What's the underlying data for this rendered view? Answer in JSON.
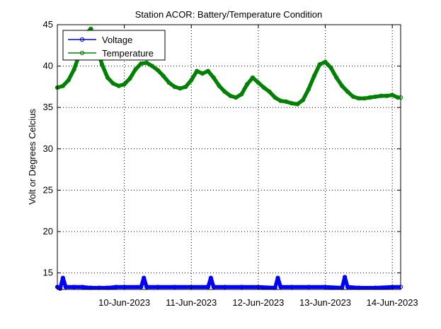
{
  "chart_data": {
    "type": "line",
    "title": "Station ACOR: Battery/Temperature Condition",
    "xlabel": "",
    "ylabel": "Volt or Degrees Celcius",
    "xlim": [
      "2023-06-09 00:00",
      "2023-06-14 03:00"
    ],
    "ylim": [
      13,
      45
    ],
    "yticks": [
      15,
      20,
      25,
      30,
      35,
      40,
      45
    ],
    "xticks": [
      {
        "label": "10-Jun-2023",
        "value": "2023-06-10 00:00"
      },
      {
        "label": "11-Jun-2023",
        "value": "2023-06-11 00:00"
      },
      {
        "label": "12-Jun-2023",
        "value": "2023-06-12 00:00"
      },
      {
        "label": "13-Jun-2023",
        "value": "2023-06-13 00:00"
      },
      {
        "label": "14-Jun-2023",
        "value": "2023-06-14 00:00"
      }
    ],
    "grid": true,
    "legend_position": "top-left",
    "series": [
      {
        "name": "Voltage",
        "color": "#0000ff",
        "marker": "circle",
        "x": [
          "2023-06-09 00:00",
          "2023-06-09 01:00",
          "2023-06-09 02:00",
          "2023-06-09 03:00",
          "2023-06-09 06:00",
          "2023-06-09 09:00",
          "2023-06-09 12:00",
          "2023-06-09 15:00",
          "2023-06-09 18:00",
          "2023-06-09 21:00",
          "2023-06-10 00:00",
          "2023-06-10 06:00",
          "2023-06-10 07:00",
          "2023-06-10 08:00",
          "2023-06-10 12:00",
          "2023-06-10 18:00",
          "2023-06-11 00:00",
          "2023-06-11 06:00",
          "2023-06-11 07:00",
          "2023-06-11 08:00",
          "2023-06-11 12:00",
          "2023-06-11 18:00",
          "2023-06-12 00:00",
          "2023-06-12 06:00",
          "2023-06-12 07:00",
          "2023-06-12 08:00",
          "2023-06-12 12:00",
          "2023-06-12 18:00",
          "2023-06-13 00:00",
          "2023-06-13 06:00",
          "2023-06-13 07:00",
          "2023-06-13 08:00",
          "2023-06-13 12:00",
          "2023-06-13 18:00",
          "2023-06-14 00:00",
          "2023-06-14 03:00"
        ],
        "values": [
          13.3,
          13.1,
          14.4,
          13.3,
          13.3,
          13.3,
          13.2,
          13.2,
          13.2,
          13.3,
          13.3,
          13.3,
          14.4,
          13.3,
          13.3,
          13.3,
          13.3,
          13.3,
          14.4,
          13.3,
          13.3,
          13.3,
          13.3,
          13.2,
          14.4,
          13.3,
          13.3,
          13.3,
          13.3,
          13.2,
          14.5,
          13.3,
          13.2,
          13.2,
          13.3,
          13.3
        ]
      },
      {
        "name": "Temperature",
        "color": "#008000",
        "marker": "circle",
        "x": [
          "2023-06-09 00:00",
          "2023-06-09 02:00",
          "2023-06-09 04:00",
          "2023-06-09 06:00",
          "2023-06-09 08:00",
          "2023-06-09 10:00",
          "2023-06-09 12:00",
          "2023-06-09 14:00",
          "2023-06-09 16:00",
          "2023-06-09 18:00",
          "2023-06-09 20:00",
          "2023-06-09 22:00",
          "2023-06-10 00:00",
          "2023-06-10 02:00",
          "2023-06-10 04:00",
          "2023-06-10 06:00",
          "2023-06-10 08:00",
          "2023-06-10 10:00",
          "2023-06-10 12:00",
          "2023-06-10 14:00",
          "2023-06-10 16:00",
          "2023-06-10 18:00",
          "2023-06-10 20:00",
          "2023-06-10 22:00",
          "2023-06-11 00:00",
          "2023-06-11 02:00",
          "2023-06-11 04:00",
          "2023-06-11 06:00",
          "2023-06-11 08:00",
          "2023-06-11 10:00",
          "2023-06-11 12:00",
          "2023-06-11 14:00",
          "2023-06-11 16:00",
          "2023-06-11 18:00",
          "2023-06-11 20:00",
          "2023-06-11 22:00",
          "2023-06-12 00:00",
          "2023-06-12 02:00",
          "2023-06-12 04:00",
          "2023-06-12 06:00",
          "2023-06-12 08:00",
          "2023-06-12 10:00",
          "2023-06-12 12:00",
          "2023-06-12 14:00",
          "2023-06-12 16:00",
          "2023-06-12 18:00",
          "2023-06-12 20:00",
          "2023-06-12 22:00",
          "2023-06-13 00:00",
          "2023-06-13 02:00",
          "2023-06-13 04:00",
          "2023-06-13 06:00",
          "2023-06-13 08:00",
          "2023-06-13 10:00",
          "2023-06-13 12:00",
          "2023-06-13 14:00",
          "2023-06-13 16:00",
          "2023-06-13 18:00",
          "2023-06-13 20:00",
          "2023-06-13 22:00",
          "2023-06-14 00:00",
          "2023-06-14 02:00",
          "2023-06-14 03:00"
        ],
        "values": [
          37.4,
          37.6,
          38.3,
          39.6,
          41.5,
          43.8,
          44.5,
          42.6,
          40.2,
          38.6,
          37.9,
          37.6,
          37.8,
          38.5,
          39.6,
          40.3,
          40.4,
          40.0,
          39.5,
          38.8,
          38.0,
          37.5,
          37.3,
          37.5,
          38.3,
          39.4,
          39.1,
          39.4,
          38.6,
          37.6,
          36.9,
          36.4,
          36.2,
          36.6,
          37.8,
          38.6,
          38.0,
          37.4,
          36.9,
          36.2,
          35.8,
          35.7,
          35.5,
          35.4,
          35.9,
          37.2,
          38.8,
          40.2,
          40.5,
          39.8,
          38.6,
          37.6,
          36.9,
          36.3,
          36.1,
          36.1,
          36.2,
          36.3,
          36.4,
          36.4,
          36.5,
          36.2,
          36.2
        ]
      }
    ]
  }
}
